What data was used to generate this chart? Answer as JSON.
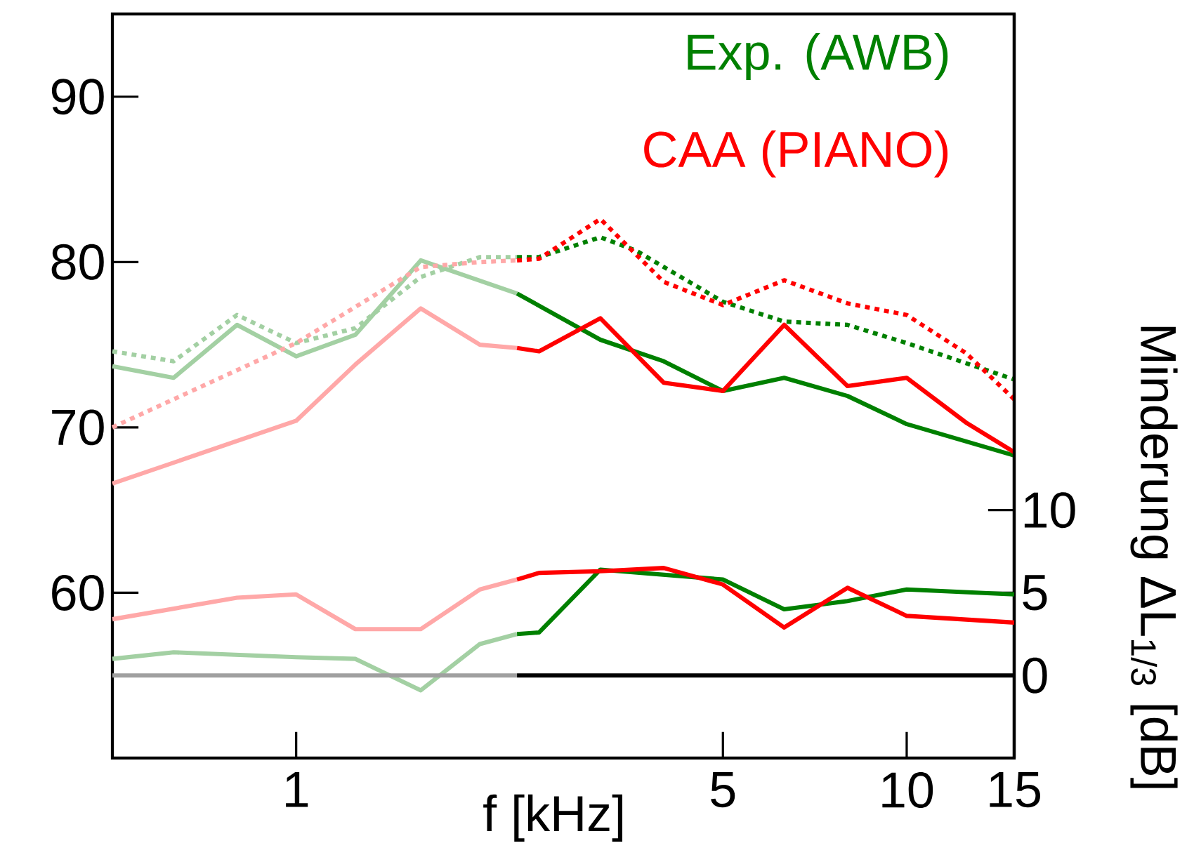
{
  "chart_data": {
    "type": "line",
    "xlabel": "f [kHz]",
    "y2label": "Minderung  ΔL$_{1/3}$ [dB]",
    "log": "x",
    "legend": "top right",
    "xlim": [
      0.5,
      15
    ],
    "xticks": [
      1,
      5,
      10,
      15
    ],
    "ylim": [
      50,
      95
    ],
    "yticks": [
      60,
      70,
      80,
      90
    ],
    "y2lim": [
      -5,
      40
    ],
    "y2ticks": [
      0,
      5,
      10
    ],
    "series": [
      {
        "color": "#a3d0a3",
        "line_style": "solid",
        "x": [
          0.5,
          0.63,
          0.8,
          1,
          1.25,
          1.6,
          2.3
        ],
        "values": [
          73.7,
          73.0,
          76.2,
          74.3,
          75.6,
          80.1,
          78.1
        ]
      },
      {
        "name": "Exp. (AWB)",
        "color": "#008000",
        "line_style": "solid",
        "x": [
          2.3,
          3.15,
          4,
          5,
          6.3,
          8,
          10,
          15
        ],
        "values": [
          78.1,
          75.3,
          74.0,
          72.2,
          73.0,
          71.9,
          70.2,
          68.3
        ]
      },
      {
        "color": "#ffa8a8",
        "line_style": "solid",
        "x": [
          0.5,
          1,
          1.25,
          1.6,
          2,
          2.3
        ],
        "values": [
          66.6,
          70.4,
          73.8,
          77.2,
          75.0,
          74.8
        ]
      },
      {
        "name": "CAA (PIANO)",
        "color": "#ff0000",
        "line_style": "solid",
        "x": [
          2.3,
          2.5,
          3.15,
          4,
          5,
          6.3,
          8,
          10,
          12.5,
          15
        ],
        "values": [
          74.8,
          74.6,
          76.6,
          72.7,
          72.2,
          76.2,
          72.5,
          73.0,
          70.3,
          68.5
        ]
      },
      {
        "color": "#a3d0a3",
        "line_style": "dotted",
        "x": [
          0.5,
          0.63,
          0.8,
          1,
          1.25,
          1.6,
          2,
          2.3
        ],
        "values": [
          74.6,
          74.0,
          76.8,
          75.1,
          76.0,
          79.1,
          80.3,
          80.3
        ]
      },
      {
        "color": "#008000",
        "line_style": "dotted",
        "x": [
          2.3,
          2.5,
          3.15,
          3.6,
          5,
          6.3,
          8,
          10,
          15
        ],
        "values": [
          80.3,
          80.3,
          81.5,
          80.7,
          77.6,
          76.4,
          76.2,
          75.1,
          72.9
        ]
      },
      {
        "color": "#ffa8a8",
        "line_style": "dotted",
        "x": [
          0.5,
          1,
          1.6,
          2,
          2.3
        ],
        "values": [
          70.0,
          75.1,
          79.7,
          80.0,
          80.1
        ]
      },
      {
        "color": "#ff0000",
        "line_style": "dotted",
        "x": [
          2.3,
          2.5,
          3.15,
          4,
          5,
          6.3,
          8,
          10,
          12.5,
          15
        ],
        "values": [
          80.1,
          80.2,
          82.6,
          78.8,
          77.4,
          78.9,
          77.5,
          76.8,
          74.5,
          71.7
        ]
      },
      {
        "color": "#a3d0a3",
        "line_style": "solid",
        "axis": "y2",
        "x": [
          0.5,
          0.63,
          1,
          1.25,
          1.6,
          2,
          2.3
        ],
        "values": [
          1.0,
          1.4,
          1.1,
          1.0,
          -0.9,
          1.9,
          2.5
        ]
      },
      {
        "color": "#008000",
        "line_style": "solid",
        "axis": "y2",
        "x": [
          2.3,
          2.5,
          3.15,
          5,
          6.3,
          8,
          10,
          15
        ],
        "values": [
          2.5,
          2.6,
          6.4,
          5.8,
          4.0,
          4.5,
          5.2,
          4.9
        ]
      },
      {
        "color": "#ffa8a8",
        "line_style": "solid",
        "axis": "y2",
        "x": [
          0.5,
          0.8,
          1,
          1.25,
          1.6,
          2,
          2.3
        ],
        "values": [
          3.4,
          4.7,
          4.9,
          2.8,
          2.8,
          5.2,
          5.8
        ]
      },
      {
        "color": "#ff0000",
        "line_style": "solid",
        "axis": "y2",
        "x": [
          2.3,
          2.5,
          3.15,
          4,
          5,
          6.3,
          8,
          10,
          15
        ],
        "values": [
          5.8,
          6.2,
          6.3,
          6.5,
          5.5,
          2.9,
          5.3,
          3.6,
          3.2
        ]
      },
      {
        "color": "#a0a0a0",
        "line_style": "solid",
        "axis": "y2",
        "x": [
          0.5,
          2.3
        ],
        "values": [
          0,
          0
        ]
      },
      {
        "color": "#000000",
        "line_style": "solid",
        "axis": "y2",
        "x": [
          2.3,
          15
        ],
        "values": [
          0,
          0
        ]
      }
    ]
  }
}
